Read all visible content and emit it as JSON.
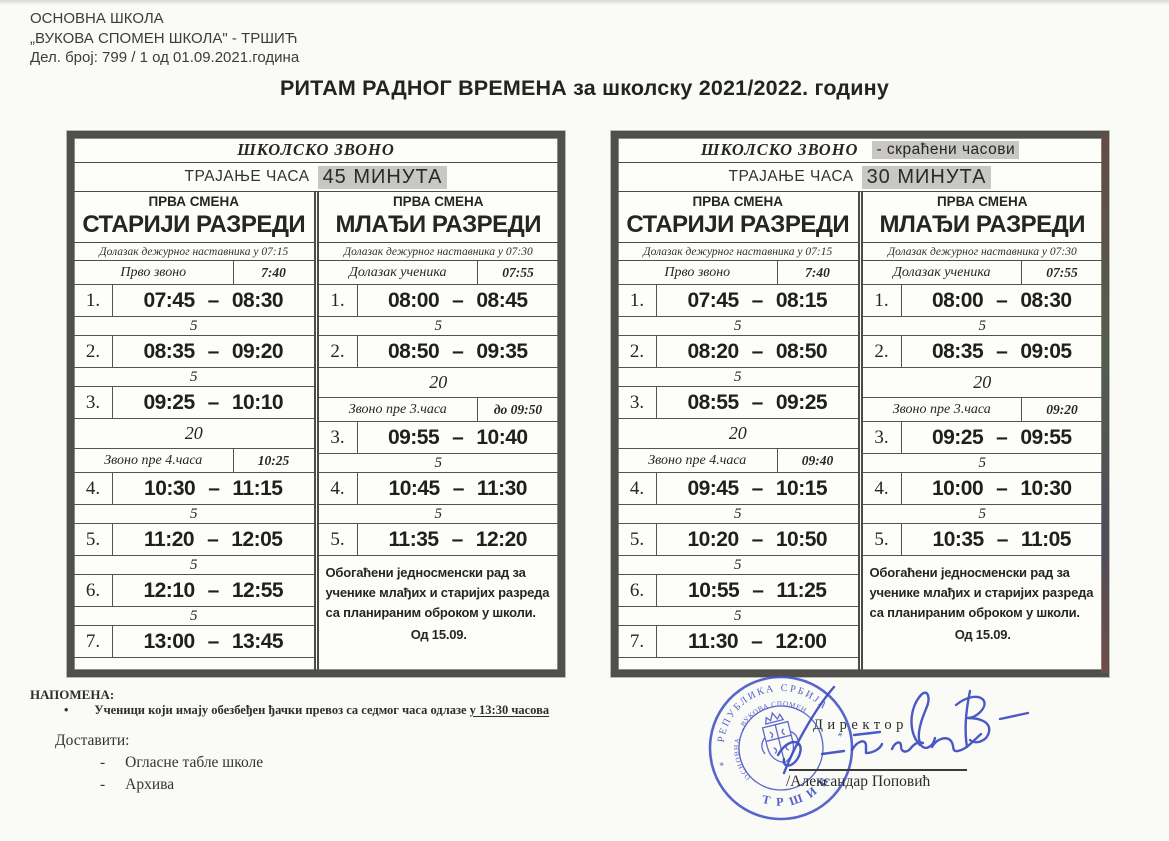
{
  "letterhead": {
    "line1": "ОСНОВНА ШКОЛА",
    "line2": "„ВУКОВА СПОМЕН ШКОЛА\" - ТРШИЋ",
    "line3": "Дел. број: 799 / 1 од 01.09.2021.година"
  },
  "title": "РИТАМ РАДНОГ ВРЕМЕНА за школску 2021/2022. годину",
  "tables": [
    {
      "header_title": "ШКОЛСКО ЗВОНО",
      "header_suffix": "",
      "duration_label": "ТРАЈАЊЕ ЧАСА",
      "duration_value": "45 МИНУТА",
      "columns": [
        {
          "shift": "ПРВА СМЕНА",
          "group": "СТАРИЈИ РАЗРЕДИ",
          "arrival": "Долазак дежурног наставника у 07:15",
          "rows": [
            {
              "type": "bell",
              "label": "Прво звоно",
              "value": "7:40"
            },
            {
              "type": "period",
              "num": "1.",
              "start": "07:45",
              "end": "08:30"
            },
            {
              "type": "break",
              "value": "5"
            },
            {
              "type": "period",
              "num": "2.",
              "start": "08:35",
              "end": "09:20"
            },
            {
              "type": "break",
              "value": "5"
            },
            {
              "type": "period",
              "num": "3.",
              "start": "09:25",
              "end": "10:10"
            },
            {
              "type": "break",
              "value": "20"
            },
            {
              "type": "bell",
              "label": "Звоно пре 4.часа",
              "value": "10:25"
            },
            {
              "type": "period",
              "num": "4.",
              "start": "10:30",
              "end": "11:15"
            },
            {
              "type": "break",
              "value": "5"
            },
            {
              "type": "period",
              "num": "5.",
              "start": "11:20",
              "end": "12:05"
            },
            {
              "type": "break",
              "value": "5"
            },
            {
              "type": "period",
              "num": "6.",
              "start": "12:10",
              "end": "12:55"
            },
            {
              "type": "break",
              "value": "5"
            },
            {
              "type": "period",
              "num": "7.",
              "start": "13:00",
              "end": "13:45"
            }
          ],
          "note": null
        },
        {
          "shift": "ПРВА СМЕНА",
          "group": "МЛАЂИ РАЗРЕДИ",
          "arrival": "Долазак дежурног наставника у 07:30",
          "rows": [
            {
              "type": "bell",
              "label": "Долазак ученика",
              "value": "07:55"
            },
            {
              "type": "period",
              "num": "1.",
              "start": "08:00",
              "end": "08:45"
            },
            {
              "type": "break",
              "value": "5"
            },
            {
              "type": "period",
              "num": "2.",
              "start": "08:50",
              "end": "09:35"
            },
            {
              "type": "break",
              "value": "20"
            },
            {
              "type": "bell",
              "label": "Звоно пре 3.часа",
              "value": "до 09:50"
            },
            {
              "type": "period",
              "num": "3.",
              "start": "09:55",
              "end": "10:40"
            },
            {
              "type": "break",
              "value": "5"
            },
            {
              "type": "period",
              "num": "4.",
              "start": "10:45",
              "end": "11:30"
            },
            {
              "type": "break",
              "value": "5"
            },
            {
              "type": "period",
              "num": "5.",
              "start": "11:35",
              "end": "12:20"
            }
          ],
          "note": {
            "text": "Обогаћени једносменски рад за ученике млађих и старијих разреда са планираним оброком у школи.",
            "date": "Од 15.09."
          }
        }
      ]
    },
    {
      "header_title": "ШКОЛСКО ЗВОНО",
      "header_suffix": "- скраћени часови",
      "duration_label": "ТРАЈАЊЕ ЧАСА",
      "duration_value": "30 МИНУТА",
      "columns": [
        {
          "shift": "ПРВА СМЕНА",
          "group": "СТАРИЈИ РАЗРЕДИ",
          "arrival": "Долазак дежурног наставника у 07:15",
          "rows": [
            {
              "type": "bell",
              "label": "Прво звоно",
              "value": "7:40"
            },
            {
              "type": "period",
              "num": "1.",
              "start": "07:45",
              "end": "08:15"
            },
            {
              "type": "break",
              "value": "5"
            },
            {
              "type": "period",
              "num": "2.",
              "start": "08:20",
              "end": "08:50"
            },
            {
              "type": "break",
              "value": "5"
            },
            {
              "type": "period",
              "num": "3.",
              "start": "08:55",
              "end": "09:25"
            },
            {
              "type": "break",
              "value": "20"
            },
            {
              "type": "bell",
              "label": "Звоно пре 4.часа",
              "value": "09:40"
            },
            {
              "type": "period",
              "num": "4.",
              "start": "09:45",
              "end": "10:15"
            },
            {
              "type": "break",
              "value": "5"
            },
            {
              "type": "period",
              "num": "5.",
              "start": "10:20",
              "end": "10:50"
            },
            {
              "type": "break",
              "value": "5"
            },
            {
              "type": "period",
              "num": "6.",
              "start": "10:55",
              "end": "11:25"
            },
            {
              "type": "break",
              "value": "5"
            },
            {
              "type": "period",
              "num": "7.",
              "start": "11:30",
              "end": "12:00"
            }
          ],
          "note": null
        },
        {
          "shift": "ПРВА СМЕНА",
          "group": "МЛАЂИ РАЗРЕДИ",
          "arrival": "Долазак дежурног наставника у 07:30",
          "rows": [
            {
              "type": "bell",
              "label": "Долазак ученика",
              "value": "07:55"
            },
            {
              "type": "period",
              "num": "1.",
              "start": "08:00",
              "end": "08:30"
            },
            {
              "type": "break",
              "value": "5"
            },
            {
              "type": "period",
              "num": "2.",
              "start": "08:35",
              "end": "09:05"
            },
            {
              "type": "break",
              "value": "20"
            },
            {
              "type": "bell",
              "label": "Звоно пре 3.часа",
              "value": "09:20"
            },
            {
              "type": "period",
              "num": "3.",
              "start": "09:25",
              "end": "09:55"
            },
            {
              "type": "break",
              "value": "5"
            },
            {
              "type": "period",
              "num": "4.",
              "start": "10:00",
              "end": "10:30"
            },
            {
              "type": "break",
              "value": "5"
            },
            {
              "type": "period",
              "num": "5.",
              "start": "10:35",
              "end": "11:05"
            }
          ],
          "note": {
            "text": "Обогаћени једносменски рад за ученике млађих и старијих разреда са планираним оброком у школи.",
            "date": "Од 15.09."
          }
        }
      ]
    }
  ],
  "footer": {
    "napomena": {
      "title": "НАПОМЕНА:",
      "bullet": "•",
      "text": "Ученици који имају обезбеђен ђачки превоз са седмог часа одлазе ",
      "underlined": "у 13:30 часова"
    },
    "dostaviti": {
      "title": "Доставити:",
      "item_prefix": "-",
      "items": [
        "Огласне табле школе",
        "Архива"
      ]
    },
    "signature": {
      "role": "Директор",
      "name": "/Александар Поповић"
    },
    "stamp": {
      "line1": "РЕПУБЛИКА СРБИЈА",
      "line2": "ОСНОВНА ШКОЛА",
      "line3": "„ВУКОВА СПОМЕН ШКОЛА“",
      "line4": "ТРШИЋ",
      "star": "*"
    }
  },
  "colors": {
    "paper": "#fafaf6",
    "ink": "#2d2d2d",
    "table_border": "#514f4b",
    "highlight": "#c8c7c3",
    "stamp_blue": "#4150c4"
  },
  "dash": "–"
}
